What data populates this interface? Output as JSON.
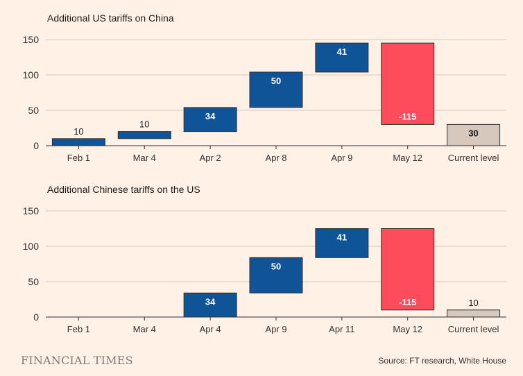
{
  "chart_data": [
    {
      "type": "waterfall",
      "title": "Additional US tariffs on China",
      "xlabel": "",
      "ylabel": "",
      "ylim": [
        0,
        150
      ],
      "yticks": [
        0,
        50,
        100,
        150
      ],
      "categories": [
        "Feb 1",
        "Mar 4",
        "Apr 2",
        "Apr 8",
        "Apr 9",
        "May 12",
        "Current level"
      ],
      "values": [
        10,
        10,
        34,
        50,
        41,
        -115,
        30
      ],
      "labels": [
        "10",
        "10",
        "34",
        "50",
        "41",
        "-115",
        "30"
      ],
      "kinds": [
        "increase",
        "increase",
        "increase",
        "increase",
        "increase",
        "decrease",
        "total"
      ]
    },
    {
      "type": "waterfall",
      "title": "Additional Chinese tariffs on the US",
      "xlabel": "",
      "ylabel": "",
      "ylim": [
        0,
        150
      ],
      "yticks": [
        0,
        50,
        100,
        150
      ],
      "categories": [
        "Feb 1",
        "Mar 4",
        "Apr 4",
        "Apr 9",
        "Apr 11",
        "May 12",
        "Current level"
      ],
      "values": [
        0,
        0,
        34,
        50,
        41,
        -115,
        10
      ],
      "labels": [
        "",
        "",
        "34",
        "50",
        "41",
        "-115",
        "10"
      ],
      "kinds": [
        "increase",
        "increase",
        "increase",
        "increase",
        "increase",
        "decrease",
        "total"
      ]
    }
  ],
  "colors": {
    "increase": "#0f5499",
    "decrease": "#ff4c5c",
    "total": "#d6c8bd",
    "grid": "#d4c8bf",
    "background": "#fff1e5"
  },
  "footer": {
    "brand": "FINANCIAL TIMES",
    "source": "Source: FT research, White House"
  }
}
